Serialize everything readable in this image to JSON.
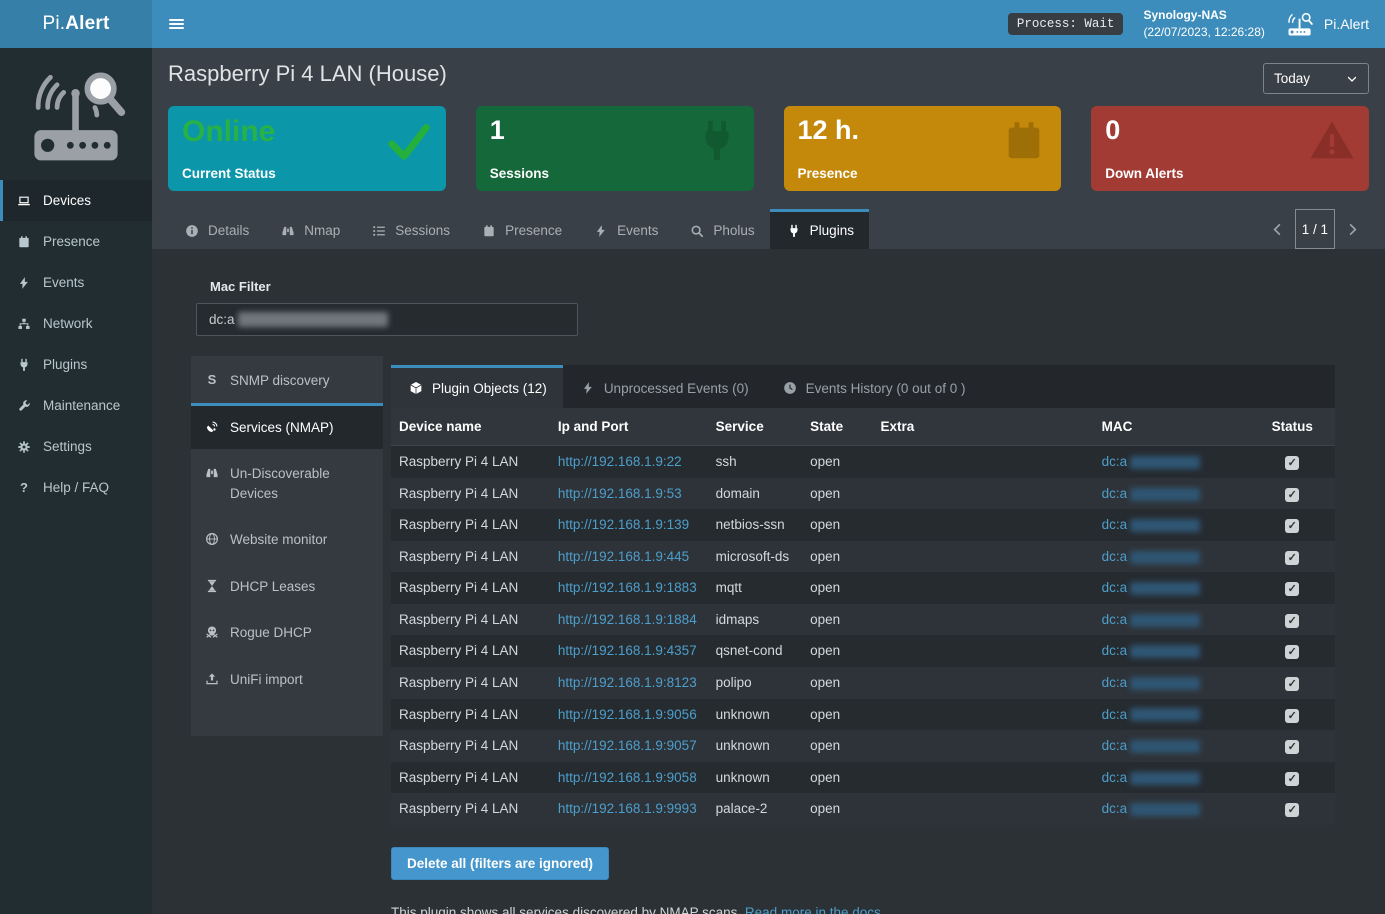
{
  "topbar": {
    "brand_prefix": "Pi.",
    "brand_suffix": "Alert",
    "process_badge": "Process: Wait",
    "host_name": "Synology-NAS",
    "host_datetime": "(22/07/2023, 12:26:28)",
    "app_name": "Pi.Alert"
  },
  "sidebar": {
    "items": [
      {
        "label": "Devices",
        "icon": "laptop",
        "active": true
      },
      {
        "label": "Presence",
        "icon": "calendar"
      },
      {
        "label": "Events",
        "icon": "bolt"
      },
      {
        "label": "Network",
        "icon": "sitemap"
      },
      {
        "label": "Plugins",
        "icon": "plug"
      },
      {
        "label": "Maintenance",
        "icon": "wrench"
      },
      {
        "label": "Settings",
        "icon": "gear"
      },
      {
        "label": "Help / FAQ",
        "icon": "question"
      }
    ]
  },
  "header": {
    "title": "Raspberry Pi 4 LAN (House)",
    "period_selected": "Today"
  },
  "summary_cards": [
    {
      "value": "Online",
      "label": "Current Status",
      "bg": "#0b96aa",
      "value_color": "#28b245",
      "icon": "check",
      "icon_color": "#25b03c"
    },
    {
      "value": "1",
      "label": "Sessions",
      "bg": "#15683a",
      "icon": "plug",
      "icon_color": "#115930"
    },
    {
      "value": "12 h.",
      "label": "Presence",
      "bg": "#c4880b",
      "icon": "calendar",
      "icon_color": "#9f6f07"
    },
    {
      "value": "0",
      "label": "Down Alerts",
      "bg": "#a23b33",
      "icon": "warning",
      "icon_color": "#8a2f28"
    }
  ],
  "device_tabs": [
    {
      "label": "Details",
      "icon": "info"
    },
    {
      "label": "Nmap",
      "icon": "binoculars"
    },
    {
      "label": "Sessions",
      "icon": "list"
    },
    {
      "label": "Presence",
      "icon": "calendar"
    },
    {
      "label": "Events",
      "icon": "bolt"
    },
    {
      "label": "Pholus",
      "icon": "search"
    },
    {
      "label": "Plugins",
      "icon": "plug",
      "active": true
    }
  ],
  "pagination": {
    "current": "1 / 1"
  },
  "plugin_panel": {
    "mac_filter_label": "Mac Filter",
    "mac_filter_value": "dc:a",
    "mac_filter_redacted": true,
    "nav": [
      {
        "label": "SNMP discovery",
        "icon": "s-letter"
      },
      {
        "label": "Services (NMAP)",
        "icon": "satellite",
        "active": true
      },
      {
        "label": "Un-Discoverable Devices",
        "icon": "binoculars"
      },
      {
        "label": "Website monitor",
        "icon": "globe"
      },
      {
        "label": "DHCP Leases",
        "icon": "hourglass"
      },
      {
        "label": "Rogue DHCP",
        "icon": "skull"
      },
      {
        "label": "UniFi import",
        "icon": "upload"
      }
    ],
    "tabs": [
      {
        "label": "Plugin Objects (12)",
        "icon": "cube",
        "active": true
      },
      {
        "label": "Unprocessed Events (0)",
        "icon": "bolt"
      },
      {
        "label": "Events History (0 out of 0 )",
        "icon": "clock"
      }
    ],
    "table": {
      "columns": [
        "Device name",
        "Ip and Port",
        "Service",
        "State",
        "Extra",
        "MAC",
        "Status"
      ],
      "rows": [
        {
          "device": "Raspberry Pi 4 LAN",
          "url": "http://192.168.1.9:22",
          "service": "ssh",
          "state": "open",
          "extra": "",
          "mac_prefix": "dc:a",
          "mac_redacted": true,
          "status_checked": true
        },
        {
          "device": "Raspberry Pi 4 LAN",
          "url": "http://192.168.1.9:53",
          "service": "domain",
          "state": "open",
          "extra": "",
          "mac_prefix": "dc:a",
          "mac_redacted": true,
          "status_checked": true
        },
        {
          "device": "Raspberry Pi 4 LAN",
          "url": "http://192.168.1.9:139",
          "service": "netbios-ssn",
          "state": "open",
          "extra": "",
          "mac_prefix": "dc:a",
          "mac_redacted": true,
          "status_checked": true
        },
        {
          "device": "Raspberry Pi 4 LAN",
          "url": "http://192.168.1.9:445",
          "service": "microsoft-ds",
          "state": "open",
          "extra": "",
          "mac_prefix": "dc:a",
          "mac_redacted": true,
          "status_checked": true
        },
        {
          "device": "Raspberry Pi 4 LAN",
          "url": "http://192.168.1.9:1883",
          "service": "mqtt",
          "state": "open",
          "extra": "",
          "mac_prefix": "dc:a",
          "mac_redacted": true,
          "status_checked": true
        },
        {
          "device": "Raspberry Pi 4 LAN",
          "url": "http://192.168.1.9:1884",
          "service": "idmaps",
          "state": "open",
          "extra": "",
          "mac_prefix": "dc:a",
          "mac_redacted": true,
          "status_checked": true
        },
        {
          "device": "Raspberry Pi 4 LAN",
          "url": "http://192.168.1.9:4357",
          "service": "qsnet-cond",
          "state": "open",
          "extra": "",
          "mac_prefix": "dc:a",
          "mac_redacted": true,
          "status_checked": true
        },
        {
          "device": "Raspberry Pi 4 LAN",
          "url": "http://192.168.1.9:8123",
          "service": "polipo",
          "state": "open",
          "extra": "",
          "mac_prefix": "dc:a",
          "mac_redacted": true,
          "status_checked": true
        },
        {
          "device": "Raspberry Pi 4 LAN",
          "url": "http://192.168.1.9:9056",
          "service": "unknown",
          "state": "open",
          "extra": "",
          "mac_prefix": "dc:a",
          "mac_redacted": true,
          "status_checked": true
        },
        {
          "device": "Raspberry Pi 4 LAN",
          "url": "http://192.168.1.9:9057",
          "service": "unknown",
          "state": "open",
          "extra": "",
          "mac_prefix": "dc:a",
          "mac_redacted": true,
          "status_checked": true
        },
        {
          "device": "Raspberry Pi 4 LAN",
          "url": "http://192.168.1.9:9058",
          "service": "unknown",
          "state": "open",
          "extra": "",
          "mac_prefix": "dc:a",
          "mac_redacted": true,
          "status_checked": true
        },
        {
          "device": "Raspberry Pi 4 LAN",
          "url": "http://192.168.1.9:9993",
          "service": "palace-2",
          "state": "open",
          "extra": "",
          "mac_prefix": "dc:a",
          "mac_redacted": true,
          "status_checked": true
        }
      ]
    },
    "delete_button": "Delete all (filters are ignored)",
    "footer_text": "This plugin shows all services discovered by NMAP scans.",
    "footer_link": "Read more in the docs."
  },
  "colors": {
    "accent": "#3c8dbc",
    "topbar": "#3c8dbc",
    "sidebar": "#222d32",
    "panel": "#2c3136",
    "link": "#4d9fcb"
  }
}
